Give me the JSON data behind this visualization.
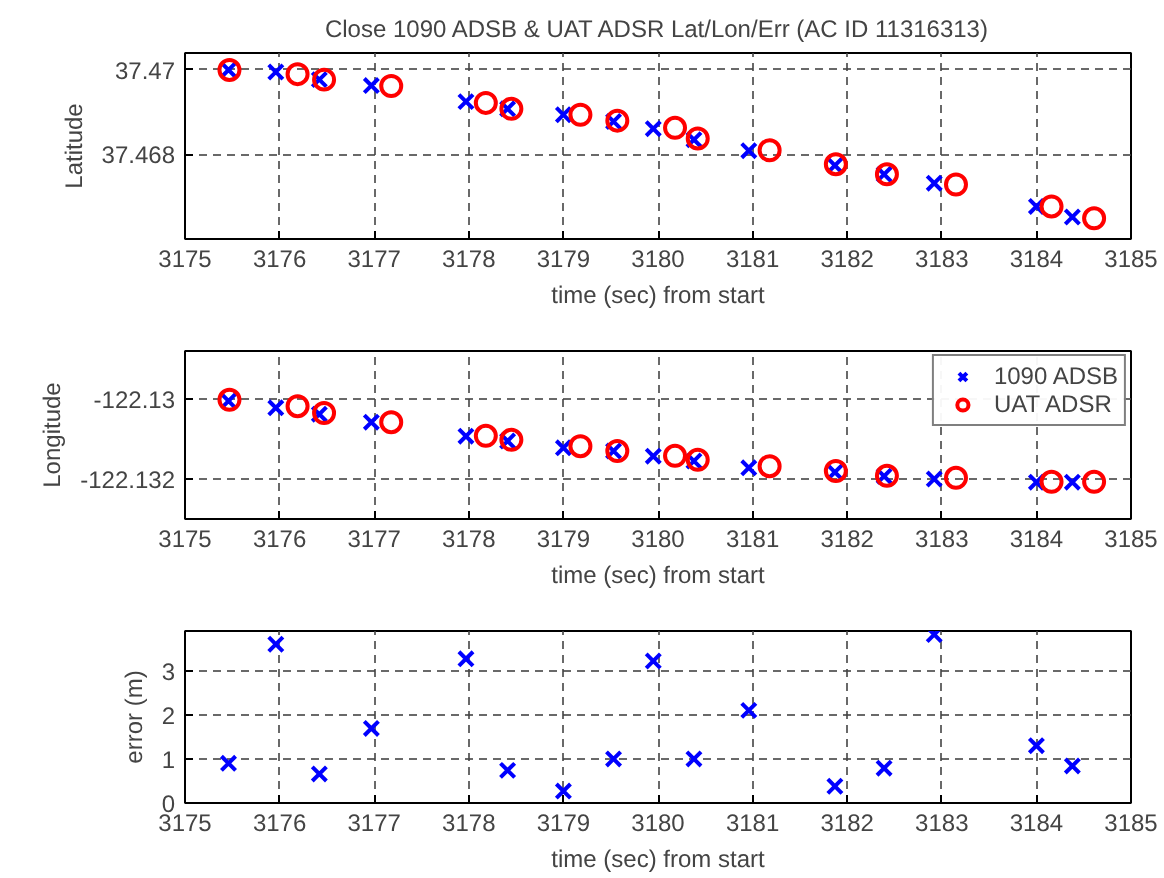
{
  "chart_data": [
    {
      "type": "scatter",
      "title": "Close 1090 ADSB & UAT ADSR Lat/Lon/Err (AC ID 11316313)",
      "xlabel": "time (sec) from start",
      "ylabel": "Latitude",
      "xlim": [
        3175,
        3185
      ],
      "xticks": [
        3175,
        3176,
        3177,
        3178,
        3179,
        3180,
        3181,
        3182,
        3183,
        3184,
        3185
      ],
      "ylim": [
        37.466,
        37.4704
      ],
      "yticks": [
        37.468,
        37.47
      ],
      "grid": true,
      "legend": false,
      "series": [
        {
          "marker": "cross",
          "color": "#0000ff",
          "x": [
            3175.46,
            3175.96,
            3176.42,
            3176.97,
            3177.97,
            3178.41,
            3179.0,
            3179.53,
            3179.95,
            3180.38,
            3180.96,
            3181.87,
            3182.39,
            3182.92,
            3184.0,
            3184.38
          ],
          "values": [
            37.47,
            37.46995,
            37.46977,
            37.46963,
            37.46925,
            37.46908,
            37.46894,
            37.46878,
            37.46861,
            37.46835,
            37.46809,
            37.46774,
            37.46753,
            37.46732,
            37.46677,
            37.46652
          ]
        },
        {
          "marker": "circle",
          "color": "#ff0000",
          "x": [
            3175.47,
            3176.19,
            3176.47,
            3177.18,
            3178.18,
            3178.45,
            3179.18,
            3179.57,
            3180.18,
            3180.42,
            3181.18,
            3181.88,
            3182.42,
            3183.15,
            3184.16,
            3184.61
          ],
          "values": [
            37.47,
            37.4699,
            37.46977,
            37.46962,
            37.46922,
            37.46908,
            37.46894,
            37.4688,
            37.46863,
            37.46838,
            37.4681,
            37.46777,
            37.46753,
            37.46729,
            37.46677,
            37.46649
          ]
        }
      ]
    },
    {
      "type": "scatter",
      "xlabel": "time (sec) from start",
      "ylabel": "Longitude",
      "xlim": [
        3175,
        3185
      ],
      "xticks": [
        3175,
        3176,
        3177,
        3178,
        3179,
        3180,
        3181,
        3182,
        3183,
        3184,
        3185
      ],
      "ylim": [
        -122.133,
        -122.1288
      ],
      "yticks": [
        -122.132,
        -122.13
      ],
      "grid": true,
      "legend": "top right",
      "series": [
        {
          "name": "1090 ADSB",
          "marker": "cross",
          "color": "#0000ff",
          "x": [
            3175.46,
            3175.96,
            3176.42,
            3176.97,
            3177.97,
            3178.41,
            3179.0,
            3179.53,
            3179.95,
            3180.38,
            3180.96,
            3181.87,
            3182.39,
            3182.92,
            3184.0,
            3184.38
          ],
          "values": [
            -122.13005,
            -122.13022,
            -122.13038,
            -122.13058,
            -122.13093,
            -122.13105,
            -122.13122,
            -122.1313,
            -122.13143,
            -122.13155,
            -122.13172,
            -122.13183,
            -122.13193,
            -122.132,
            -122.13208,
            -122.13208
          ]
        },
        {
          "name": "UAT ADSR",
          "marker": "circle",
          "color": "#ff0000",
          "x": [
            3175.47,
            3176.19,
            3176.47,
            3177.18,
            3178.18,
            3178.45,
            3179.18,
            3179.57,
            3180.18,
            3180.42,
            3181.18,
            3181.88,
            3182.42,
            3183.15,
            3184.16,
            3184.61
          ],
          "values": [
            -122.13002,
            -122.13018,
            -122.13035,
            -122.13058,
            -122.13092,
            -122.13102,
            -122.13118,
            -122.1313,
            -122.13142,
            -122.13152,
            -122.13168,
            -122.1318,
            -122.13192,
            -122.13197,
            -122.13207,
            -122.13207
          ]
        }
      ]
    },
    {
      "type": "scatter",
      "xlabel": "time (sec) from start",
      "ylabel": "error (m)",
      "xlim": [
        3175,
        3185
      ],
      "xticks": [
        3175,
        3176,
        3177,
        3178,
        3179,
        3180,
        3181,
        3182,
        3183,
        3184,
        3185
      ],
      "ylim": [
        0,
        3.9
      ],
      "yticks": [
        0,
        1,
        2,
        3
      ],
      "grid": true,
      "legend": false,
      "series": [
        {
          "marker": "cross",
          "color": "#0000ff",
          "x": [
            3175.46,
            3175.96,
            3176.42,
            3176.97,
            3177.97,
            3178.41,
            3179.0,
            3179.53,
            3179.95,
            3180.38,
            3180.96,
            3181.87,
            3182.39,
            3182.92,
            3184.0,
            3184.38
          ],
          "values": [
            0.9,
            3.6,
            0.66,
            1.69,
            3.27,
            0.74,
            0.27,
            1.0,
            3.22,
            1.0,
            2.1,
            0.38,
            0.79,
            3.82,
            1.3,
            0.84
          ]
        }
      ]
    }
  ]
}
